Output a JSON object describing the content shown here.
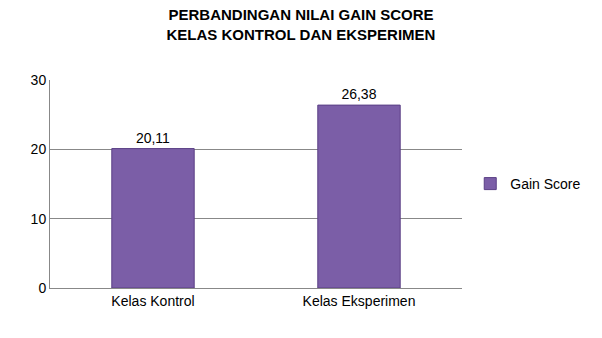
{
  "chart_data": {
    "type": "bar",
    "title": "PERBANDINGAN NILAI GAIN SCORE KELAS KONTROL DAN EKSPERIMEN",
    "categories": [
      "Kelas Kontrol",
      "Kelas Eksperimen"
    ],
    "series": [
      {
        "name": "Gain Score",
        "color": "#7b5ea7",
        "values": [
          20.11,
          26.38
        ],
        "value_labels": [
          "20,11",
          "26,38"
        ]
      }
    ],
    "ylim": [
      0,
      30
    ],
    "yticks": [
      0,
      10,
      20,
      30
    ],
    "grid": true,
    "legend": "right",
    "data_labels": true
  }
}
